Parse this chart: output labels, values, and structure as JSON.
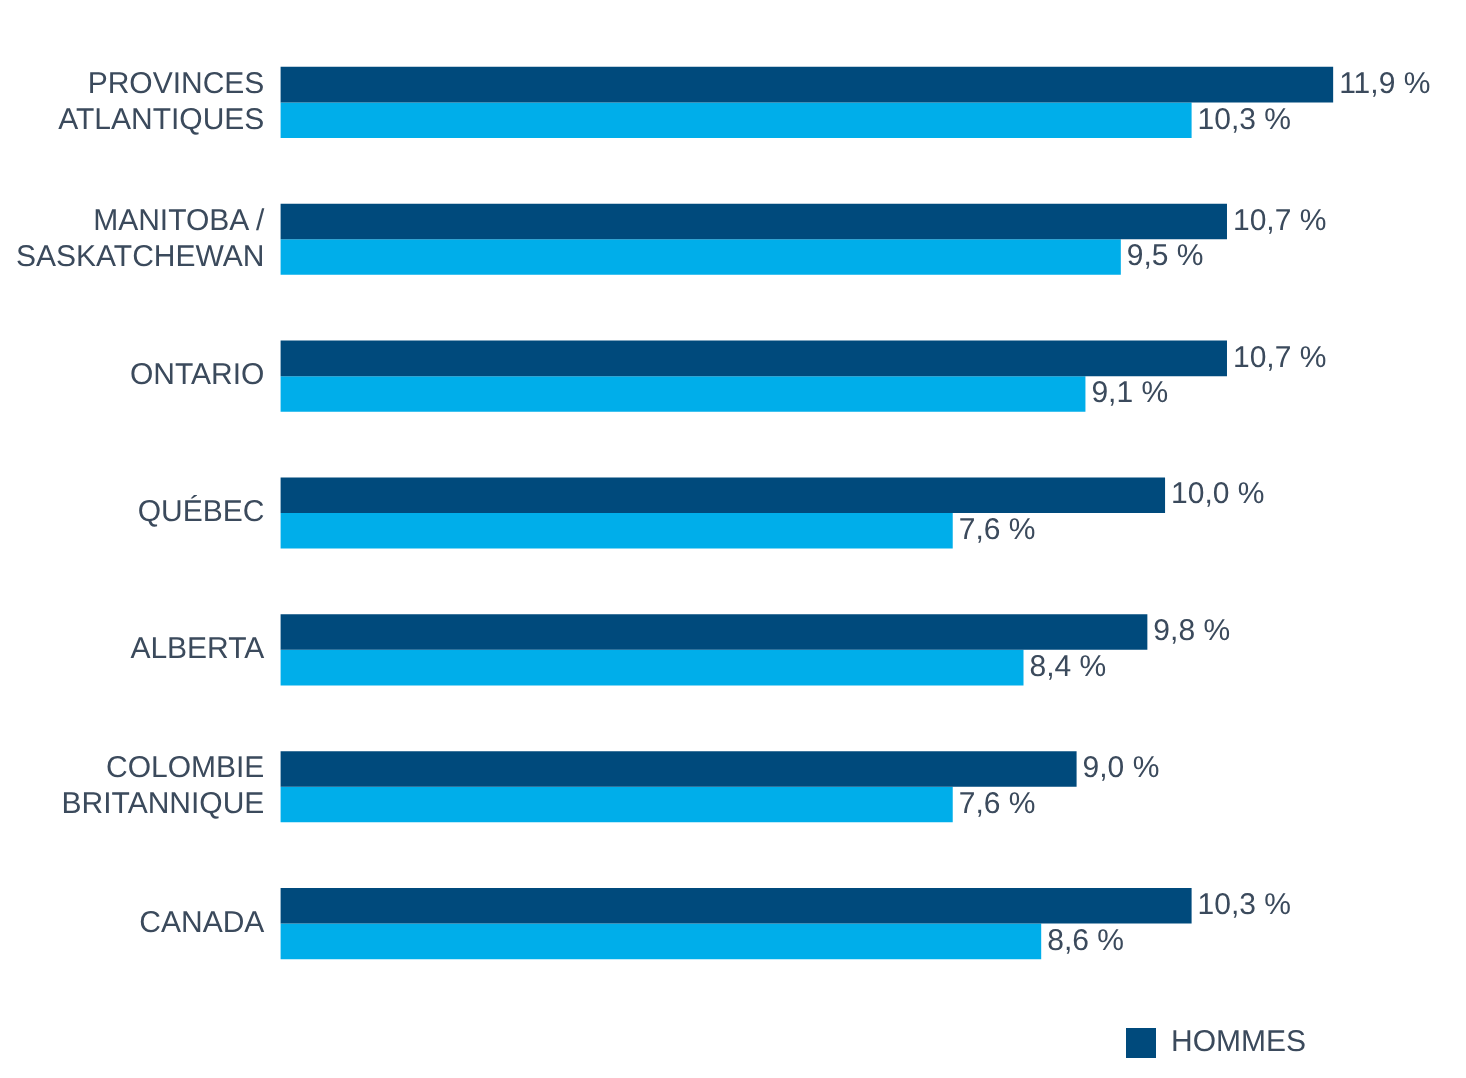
{
  "chart_data": {
    "type": "bar",
    "orientation": "horizontal",
    "categories": [
      "PROVINCES ATLANTIQUES",
      "MANITOBA / SASKATCHEWAN",
      "ONTARIO",
      "QUÉBEC",
      "ALBERTA",
      "COLOMBIE BRITANNIQUE",
      "CANADA"
    ],
    "series": [
      {
        "name": "HOMMES",
        "color": "#004a7c",
        "values": [
          11.9,
          10.7,
          10.7,
          10.0,
          9.8,
          9.0,
          10.3
        ],
        "value_labels": [
          "11,9 %",
          "10,7 %",
          "10,7 %",
          "10,0 %",
          "9,8 %",
          "9,0 %",
          "10,3 %"
        ]
      },
      {
        "color": "#00aeea",
        "values": [
          10.3,
          9.5,
          9.1,
          7.6,
          8.4,
          7.6,
          8.6
        ],
        "value_labels": [
          "10,3 %",
          "9,5 %",
          "9,1 %",
          "7,6 %",
          "8,4 %",
          "7,6 %",
          "8,6 %"
        ]
      }
    ],
    "tick_labels": "y",
    "legend": "bottom right"
  }
}
